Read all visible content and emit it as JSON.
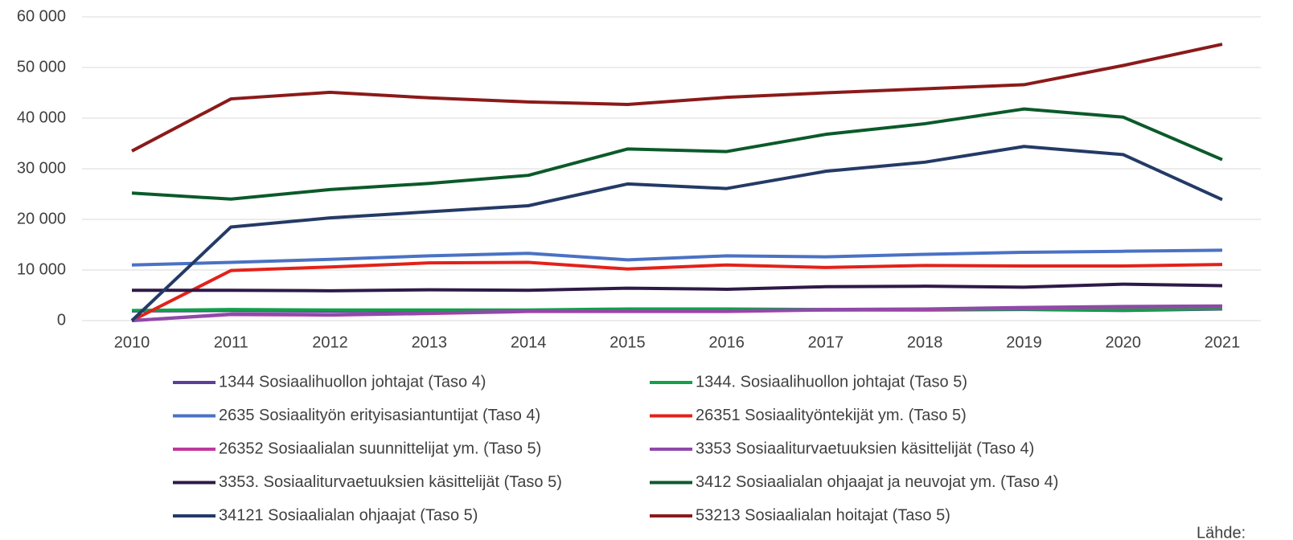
{
  "chart_data": {
    "type": "line",
    "categories": [
      "2010",
      "2011",
      "2012",
      "2013",
      "2014",
      "2015",
      "2016",
      "2017",
      "2018",
      "2019",
      "2020",
      "2021"
    ],
    "ylim": [
      0,
      60000
    ],
    "yticks": [
      0,
      {
        "value": 10000,
        "label": "10 000"
      },
      {
        "value": 20000,
        "label": "20 000"
      },
      {
        "value": 30000,
        "label": "30 000"
      },
      {
        "value": 40000,
        "label": "40 000"
      },
      {
        "value": 50000,
        "label": "50 000"
      },
      {
        "value": 60000,
        "label": "60 000"
      }
    ],
    "grid": true,
    "legend": "bottom",
    "source_label": "Lähde:",
    "series": [
      {
        "name": "1344 Sosiaalihuollon johtajat (Taso 4)",
        "color": "#5b3f9a",
        "values": [
          1900,
          2000,
          1900,
          2000,
          2000,
          2100,
          2100,
          2100,
          2100,
          2200,
          2000,
          2300
        ]
      },
      {
        "name": "1344. Sosiaalihuollon johtajat (Taso 5)",
        "color": "#12a04a",
        "values": [
          2000,
          2200,
          2100,
          2100,
          2100,
          2300,
          2300,
          2200,
          2200,
          2300,
          2100,
          2400
        ]
      },
      {
        "name": "2635 Sosiaalityön erityisasiantuntijat (Taso 4)",
        "color": "#4a72c4",
        "values": [
          11000,
          11500,
          12100,
          12800,
          13300,
          12000,
          12800,
          12600,
          13100,
          13500,
          13700,
          13900
        ]
      },
      {
        "name": "26351 Sosiaalityöntekijät ym. (Taso 5)",
        "color": "#e32119",
        "values": [
          0,
          9900,
          10600,
          11400,
          11500,
          10200,
          11000,
          10500,
          10900,
          10800,
          10800,
          11100
        ]
      },
      {
        "name": "26352 Sosiaalialan suunnittelijat ym. (Taso 5)",
        "color": "#c0399b",
        "values": [
          0,
          1200,
          1100,
          1400,
          1800,
          1800,
          1800,
          2100,
          2200,
          2500,
          2700,
          2800
        ]
      },
      {
        "name": "3353 Sosiaaliturvaetuuksien käsittelijät (Taso 4)",
        "color": "#8e4aa8",
        "values": [
          0,
          1300,
          1200,
          1500,
          1900,
          1900,
          1900,
          2200,
          2300,
          2600,
          2800,
          2900
        ]
      },
      {
        "name": "3353. Sosiaaliturvaetuuksien käsittelijät (Taso 5)",
        "color": "#2e1a47",
        "values": [
          6000,
          6000,
          5900,
          6100,
          6000,
          6400,
          6200,
          6700,
          6800,
          6600,
          7200,
          6900
        ]
      },
      {
        "name": "3412 Sosiaalialan ohjaajat ja neuvojat ym. (Taso 4)",
        "color": "#0b5a2a",
        "values": [
          25200,
          24000,
          25900,
          27100,
          28700,
          33900,
          33400,
          36800,
          38900,
          41800,
          40200,
          31800
        ]
      },
      {
        "name": "34121 Sosiaalialan ohjaajat (Taso 5)",
        "color": "#243a66",
        "values": [
          0,
          18500,
          20300,
          21500,
          22700,
          27000,
          26100,
          29500,
          31300,
          34400,
          32800,
          23900
        ]
      },
      {
        "name": "53213 Sosiaalialan hoitajat (Taso 5)",
        "color": "#8b1a1a",
        "values": [
          33500,
          43800,
          45100,
          44000,
          43200,
          42700,
          44100,
          45000,
          45800,
          46600,
          50400,
          54600
        ]
      }
    ]
  }
}
